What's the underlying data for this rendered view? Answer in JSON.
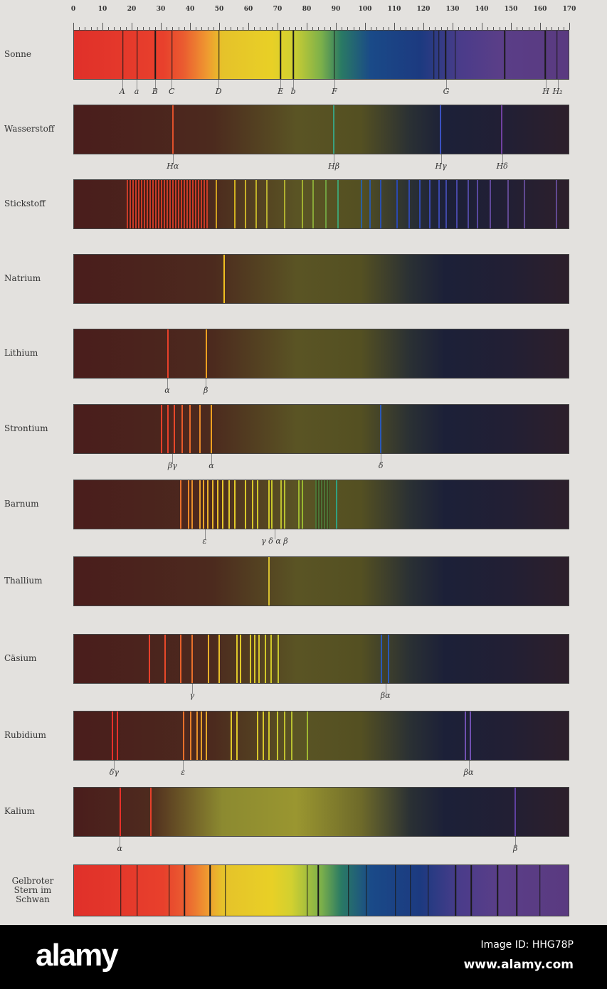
{
  "scale": {
    "min": 0,
    "max": 170,
    "labels": [
      "0",
      "10",
      "20",
      "30",
      "40",
      "50",
      "60",
      "70",
      "80",
      "90",
      "100",
      "110",
      "120",
      "130",
      "140",
      "150",
      "160",
      "170"
    ]
  },
  "spectra": [
    {
      "name": "Sonne",
      "bg": "solar",
      "lines": [
        {
          "pos": 16.8,
          "color": "#1a1a1a"
        },
        {
          "pos": 21.7,
          "color": "#1a1a1a"
        },
        {
          "pos": 28,
          "color": "#1a1a1a"
        },
        {
          "pos": 33.7,
          "color": "#1a1a1a"
        },
        {
          "pos": 49.8,
          "color": "#1a1a1a"
        },
        {
          "pos": 71,
          "color": "#1a1a1a"
        },
        {
          "pos": 75.4,
          "color": "#1a1a1a"
        },
        {
          "pos": 89.5,
          "color": "#1a1a1a"
        },
        {
          "pos": 123.7,
          "color": "#1a1a1a"
        },
        {
          "pos": 125.4,
          "color": "#1a1a1a"
        },
        {
          "pos": 127.8,
          "color": "#1a1a1a"
        },
        {
          "pos": 131,
          "color": "#1a1a1a"
        },
        {
          "pos": 148,
          "color": "#1a1a1a"
        },
        {
          "pos": 162,
          "color": "#1a1a1a"
        },
        {
          "pos": 166,
          "color": "#1a1a1a"
        }
      ],
      "labels": [
        {
          "pos": 16.8,
          "text": "A"
        },
        {
          "pos": 21.7,
          "text": "a"
        },
        {
          "pos": 28,
          "text": "B"
        },
        {
          "pos": 33.7,
          "text": "C"
        },
        {
          "pos": 49.8,
          "text": "D"
        },
        {
          "pos": 71,
          "text": "E"
        },
        {
          "pos": 75.4,
          "text": "b"
        },
        {
          "pos": 89.5,
          "text": "F"
        },
        {
          "pos": 127.8,
          "text": "G"
        },
        {
          "pos": 162,
          "text": "H"
        },
        {
          "pos": 166,
          "text": "H₂"
        }
      ]
    },
    {
      "name": "Wasserstoff",
      "bg": "dark",
      "lines": [
        {
          "pos": 34.1,
          "color": "#e0502a"
        },
        {
          "pos": 89.3,
          "color": "#3aa080"
        },
        {
          "pos": 126,
          "color": "#3a50c0"
        },
        {
          "pos": 147,
          "color": "#7040a0"
        }
      ],
      "labels": [
        {
          "pos": 34.1,
          "text": "Hα"
        },
        {
          "pos": 89.3,
          "text": "Hβ"
        },
        {
          "pos": 126,
          "text": "Hγ"
        },
        {
          "pos": 147,
          "text": "Hδ"
        }
      ]
    },
    {
      "name": "Stickstoff",
      "bg": "dark",
      "bands": [
        {
          "from": 18,
          "to": 46,
          "color": "#e0402a"
        }
      ],
      "lines": [
        {
          "pos": 48.8,
          "color": "#d0a020"
        },
        {
          "pos": 55.4,
          "color": "#d0b020"
        },
        {
          "pos": 59,
          "color": "#c8b028"
        },
        {
          "pos": 62.7,
          "color": "#c0b028"
        },
        {
          "pos": 66.3,
          "color": "#b8b030"
        },
        {
          "pos": 72.4,
          "color": "#b0b030"
        },
        {
          "pos": 78.5,
          "color": "#a0b030"
        },
        {
          "pos": 82.2,
          "color": "#88a838"
        },
        {
          "pos": 86.6,
          "color": "#70a040"
        },
        {
          "pos": 90.7,
          "color": "#40a070"
        },
        {
          "pos": 98.8,
          "color": "#2a60a0"
        },
        {
          "pos": 101.7,
          "color": "#2a58a8"
        },
        {
          "pos": 105.4,
          "color": "#2a50b0"
        },
        {
          "pos": 111,
          "color": "#2a48b0"
        },
        {
          "pos": 115.1,
          "color": "#3048b0"
        },
        {
          "pos": 118.8,
          "color": "#3048b0"
        },
        {
          "pos": 122.4,
          "color": "#3a48b0"
        },
        {
          "pos": 125.4,
          "color": "#3a48b0"
        },
        {
          "pos": 128,
          "color": "#4048a8"
        },
        {
          "pos": 131.5,
          "color": "#4848a8"
        },
        {
          "pos": 135.4,
          "color": "#5048a0"
        },
        {
          "pos": 138.8,
          "color": "#5848a0"
        },
        {
          "pos": 143.2,
          "color": "#604898"
        },
        {
          "pos": 149.3,
          "color": "#604890"
        },
        {
          "pos": 154.9,
          "color": "#604890"
        },
        {
          "pos": 165.9,
          "color": "#604890"
        }
      ],
      "labels": []
    },
    {
      "name": "Natrium",
      "bg": "dark",
      "lines": [
        {
          "pos": 51.5,
          "color": "#f0c020"
        }
      ],
      "labels": []
    },
    {
      "name": "Lithium",
      "bg": "dark",
      "lines": [
        {
          "pos": 32.2,
          "color": "#e8402a"
        },
        {
          "pos": 45.4,
          "color": "#f0a020"
        }
      ],
      "labels": [
        {
          "pos": 32.2,
          "text": "α"
        },
        {
          "pos": 45.4,
          "text": "β"
        }
      ]
    },
    {
      "name": "Strontium",
      "bg": "dark",
      "lines": [
        {
          "pos": 30.2,
          "color": "#e8402a"
        },
        {
          "pos": 32.4,
          "color": "#e8402a"
        },
        {
          "pos": 34.6,
          "color": "#e8482a"
        },
        {
          "pos": 37.3,
          "color": "#e85a2a"
        },
        {
          "pos": 39.8,
          "color": "#e86a2a"
        },
        {
          "pos": 43.4,
          "color": "#e88a2a"
        },
        {
          "pos": 47.3,
          "color": "#f0a020"
        },
        {
          "pos": 105.4,
          "color": "#2a58b8"
        }
      ],
      "labels": [
        {
          "pos": 34,
          "text": "βγ"
        },
        {
          "pos": 47.3,
          "text": "α"
        },
        {
          "pos": 105.4,
          "text": "δ"
        }
      ]
    },
    {
      "name": "Barnum",
      "bg": "dark",
      "bands": [
        {
          "from": 83,
          "to": 88,
          "color": "#4a7a3a"
        }
      ],
      "lines": [
        {
          "pos": 36.6,
          "color": "#e8702a"
        },
        {
          "pos": 39.5,
          "color": "#e8882a"
        },
        {
          "pos": 40.7,
          "color": "#e8902a"
        },
        {
          "pos": 43.2,
          "color": "#e8a02a"
        },
        {
          "pos": 44.6,
          "color": "#e8a82a"
        },
        {
          "pos": 46.1,
          "color": "#e8b02a"
        },
        {
          "pos": 47.6,
          "color": "#e8b82a"
        },
        {
          "pos": 49.3,
          "color": "#e8c02a"
        },
        {
          "pos": 51.2,
          "color": "#e8c82a"
        },
        {
          "pos": 53.4,
          "color": "#e0c82a"
        },
        {
          "pos": 55.4,
          "color": "#e0c82a"
        },
        {
          "pos": 59,
          "color": "#d8c82a"
        },
        {
          "pos": 61.5,
          "color": "#d8c82a"
        },
        {
          "pos": 63.2,
          "color": "#d0c82a"
        },
        {
          "pos": 67.1,
          "color": "#d0c82a"
        },
        {
          "pos": 68,
          "color": "#c8c82a"
        },
        {
          "pos": 71.2,
          "color": "#c0c030"
        },
        {
          "pos": 72.4,
          "color": "#b8c030"
        },
        {
          "pos": 77.3,
          "color": "#a0b830"
        },
        {
          "pos": 78.5,
          "color": "#98b830"
        },
        {
          "pos": 90.2,
          "color": "#30a080"
        }
      ],
      "labels": [
        {
          "pos": 45,
          "text": "ε"
        },
        {
          "pos": 69,
          "text": "γ δ α β"
        }
      ]
    },
    {
      "name": "Thallium",
      "bg": "dark",
      "lines": [
        {
          "pos": 67,
          "color": "#d8c030"
        }
      ],
      "labels": []
    },
    {
      "name": "Cäsium",
      "bg": "dark",
      "lines": [
        {
          "pos": 25.9,
          "color": "#e8402a"
        },
        {
          "pos": 31.2,
          "color": "#e8482a"
        },
        {
          "pos": 36.8,
          "color": "#e8602a"
        },
        {
          "pos": 40.7,
          "color": "#e8702a"
        },
        {
          "pos": 46.3,
          "color": "#e8b02a"
        },
        {
          "pos": 50,
          "color": "#e8c02a"
        },
        {
          "pos": 56.1,
          "color": "#e0c82a"
        },
        {
          "pos": 57.3,
          "color": "#e0c82a"
        },
        {
          "pos": 60.7,
          "color": "#d8c82a"
        },
        {
          "pos": 62.2,
          "color": "#d8c82a"
        },
        {
          "pos": 63.7,
          "color": "#d8c82a"
        },
        {
          "pos": 65.9,
          "color": "#d0c82a"
        },
        {
          "pos": 67.8,
          "color": "#d0c82a"
        },
        {
          "pos": 70.2,
          "color": "#c8c830"
        },
        {
          "pos": 105.6,
          "color": "#2a58b8"
        },
        {
          "pos": 108,
          "color": "#2a58b8"
        }
      ],
      "labels": [
        {
          "pos": 40.7,
          "text": "γ"
        },
        {
          "pos": 107,
          "text": "βα"
        }
      ]
    },
    {
      "name": "Rubidium",
      "bg": "dark",
      "lines": [
        {
          "pos": 13.2,
          "color": "#e8302a"
        },
        {
          "pos": 14.9,
          "color": "#e8302a"
        },
        {
          "pos": 37.6,
          "color": "#e8702a"
        },
        {
          "pos": 40.2,
          "color": "#e8802a"
        },
        {
          "pos": 42.2,
          "color": "#e8902a"
        },
        {
          "pos": 43.7,
          "color": "#e8a02a"
        },
        {
          "pos": 45.6,
          "color": "#e8a82a"
        },
        {
          "pos": 54.1,
          "color": "#e0c82a"
        },
        {
          "pos": 55.9,
          "color": "#e0c82a"
        },
        {
          "pos": 63.2,
          "color": "#d8c82a"
        },
        {
          "pos": 65.1,
          "color": "#d8c82a"
        },
        {
          "pos": 67.1,
          "color": "#d0c82a"
        },
        {
          "pos": 70,
          "color": "#c8c830"
        },
        {
          "pos": 72.4,
          "color": "#c0c030"
        },
        {
          "pos": 74.9,
          "color": "#b8c030"
        },
        {
          "pos": 80.2,
          "color": "#a0b830"
        },
        {
          "pos": 134.6,
          "color": "#7050b0"
        },
        {
          "pos": 136.3,
          "color": "#7050b0"
        }
      ],
      "labels": [
        {
          "pos": 14,
          "text": "δγ"
        },
        {
          "pos": 37.6,
          "text": "ε"
        },
        {
          "pos": 135.5,
          "text": "βα"
        }
      ]
    },
    {
      "name": "Kalium",
      "bg": "kalium",
      "lines": [
        {
          "pos": 15.9,
          "color": "#e8302a"
        },
        {
          "pos": 26.3,
          "color": "#e8402a"
        },
        {
          "pos": 151.7,
          "color": "#6040a0"
        }
      ],
      "labels": [
        {
          "pos": 15.9,
          "text": "α"
        },
        {
          "pos": 151.5,
          "text": "β"
        }
      ]
    },
    {
      "name": "Gelbroter Stern im Schwan",
      "bg": "solar",
      "lines": [
        {
          "pos": 16.1,
          "color": "#1a1a1a"
        },
        {
          "pos": 21.7,
          "color": "#1a1a1a"
        },
        {
          "pos": 32.7,
          "color": "#1a1a1a"
        },
        {
          "pos": 38,
          "color": "#1a1a1a"
        },
        {
          "pos": 46.8,
          "color": "#1a1a1a"
        },
        {
          "pos": 52,
          "color": "#1a1a1a"
        },
        {
          "pos": 80.2,
          "color": "#1a1a1a"
        },
        {
          "pos": 83.9,
          "color": "#1a1a1a"
        },
        {
          "pos": 94.4,
          "color": "#1a1a1a"
        },
        {
          "pos": 100.5,
          "color": "#1a1a1a"
        },
        {
          "pos": 110.5,
          "color": "#1a1a1a"
        },
        {
          "pos": 115.6,
          "color": "#1a1a1a"
        },
        {
          "pos": 121.7,
          "color": "#1a1a1a"
        },
        {
          "pos": 131.2,
          "color": "#1a1a1a"
        },
        {
          "pos": 136.6,
          "color": "#1a1a1a"
        },
        {
          "pos": 145.6,
          "color": "#1a1a1a"
        },
        {
          "pos": 152.2,
          "color": "#1a1a1a"
        },
        {
          "pos": 160.2,
          "color": "#1a1a1a"
        }
      ],
      "labels": []
    }
  ],
  "footer": {
    "logo": "alamy",
    "image_id": "Image ID: HHG78P",
    "url": "www.alamy.com"
  }
}
